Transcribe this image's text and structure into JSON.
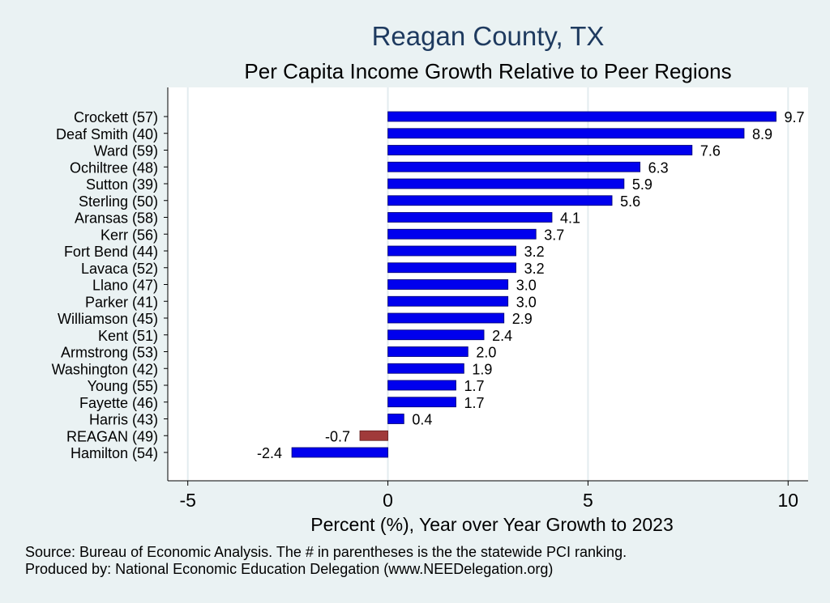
{
  "chart_data": {
    "type": "bar",
    "orientation": "horizontal",
    "title": "Reagan County, TX",
    "subtitle": "Per Capita Income Growth Relative to Peer Regions",
    "xlabel": "Percent (%), Year over Year Growth to 2023",
    "xlim": [
      -5.5,
      10.5
    ],
    "xticks": [
      -5,
      0,
      5,
      10
    ],
    "grid": true,
    "categories": [
      "Crockett (57)",
      "Deaf Smith (40)",
      "Ward (59)",
      "Ochiltree (48)",
      "Sutton (39)",
      "Sterling (50)",
      "Aransas (58)",
      "Kerr (56)",
      "Fort Bend (44)",
      "Lavaca (52)",
      "Llano (47)",
      "Parker (41)",
      "Williamson (45)",
      "Kent (51)",
      "Armstrong (53)",
      "Washington (42)",
      "Young (55)",
      "Fayette (46)",
      "Harris (43)",
      "REAGAN (49)",
      "Hamilton (54)"
    ],
    "values": [
      9.7,
      8.9,
      7.6,
      6.3,
      5.9,
      5.6,
      4.1,
      3.7,
      3.2,
      3.2,
      3.0,
      3.0,
      2.9,
      2.4,
      2.0,
      1.9,
      1.7,
      1.7,
      0.4,
      -0.7,
      -2.4
    ],
    "value_labels": [
      "9.7",
      "8.9",
      "7.6",
      "6.3",
      "5.9",
      "5.6",
      "4.1",
      "3.7",
      "3.2",
      "3.2",
      "3.0",
      "3.0",
      "2.9",
      "2.4",
      "2.0",
      "1.9",
      "1.7",
      "1.7",
      "0.4",
      "-0.7",
      "-2.4"
    ],
    "highlight_category": "REAGAN (49)",
    "colors": {
      "bar": "#0000ee",
      "highlight": "#a03a3a",
      "background": "#eaf2f3",
      "plot": "#ffffff",
      "grid": "#e3ecef",
      "title": "#1e3a5f"
    }
  },
  "footer": {
    "source": "Source: Bureau of Economic Analysis. The # in parentheses is the the statewide PCI ranking.",
    "produced": "Produced by: National Economic Education Delegation (www.NEEDelegation.org)"
  }
}
